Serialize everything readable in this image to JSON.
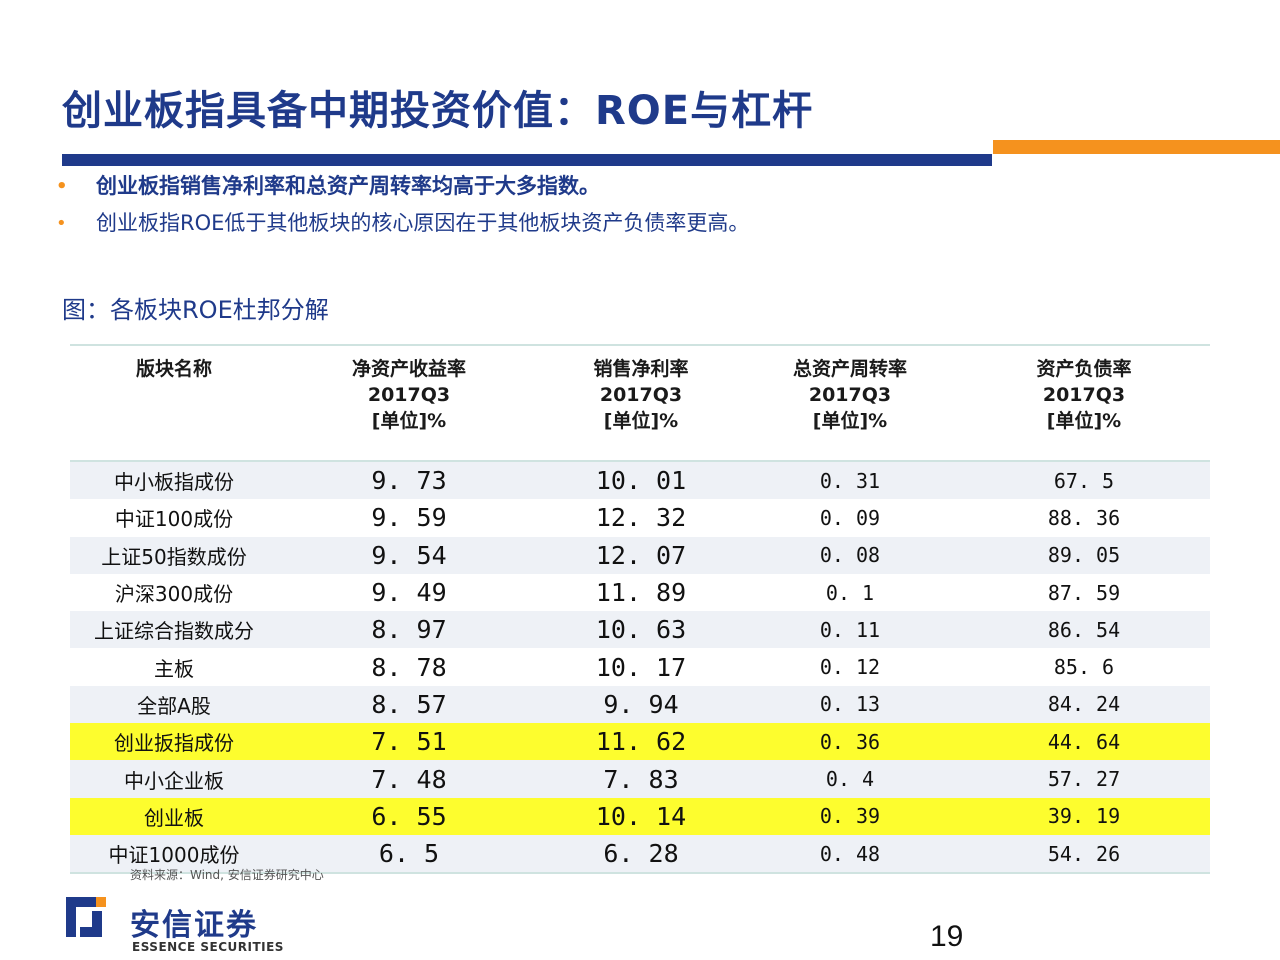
{
  "slide": {
    "title": "创业板指具备中期投资价值：ROE与杠杆",
    "bullets": [
      "创业板指销售净利率和总资产周转率均高于大多指数。",
      "创业板指ROE低于其他板块的核心原因在于其他板块资产负债率更高。"
    ],
    "bullet_glyph": "•",
    "figure_title": "图：各板块ROE杜邦分解",
    "page_number": "19"
  },
  "table": {
    "headers": [
      [
        "版块名称"
      ],
      [
        "净资产收益率",
        "2017Q3",
        "[单位]%"
      ],
      [
        "销售净利率",
        "2017Q3",
        "[单位]%"
      ],
      [
        "总资产周转率",
        "2017Q3",
        "[单位]%"
      ],
      [
        "资产负债率",
        "2017Q3",
        "[单位]%"
      ]
    ],
    "rows": [
      {
        "name": "中小板指成份",
        "roe": "9. 73",
        "margin": "10. 01",
        "turnover": "0. 31",
        "debt": "67. 5"
      },
      {
        "name": "中证100成份",
        "roe": "9. 59",
        "margin": "12. 32",
        "turnover": "0. 09",
        "debt": "88. 36"
      },
      {
        "name": "上证50指数成份",
        "roe": "9. 54",
        "margin": "12. 07",
        "turnover": "0. 08",
        "debt": "89. 05"
      },
      {
        "name": "沪深300成份",
        "roe": "9. 49",
        "margin": "11. 89",
        "turnover": "0. 1",
        "debt": "87. 59"
      },
      {
        "name": "上证综合指数成分",
        "roe": "8. 97",
        "margin": "10. 63",
        "turnover": "0. 11",
        "debt": "86. 54"
      },
      {
        "name": "主板",
        "roe": "8. 78",
        "margin": "10. 17",
        "turnover": "0. 12",
        "debt": "85. 6"
      },
      {
        "name": "全部A股",
        "roe": "8. 57",
        "margin": "9. 94",
        "turnover": "0. 13",
        "debt": "84. 24"
      },
      {
        "name": "创业扳指成份",
        "roe": "7. 51",
        "margin": "11. 62",
        "turnover": "0. 36",
        "debt": "44. 64"
      },
      {
        "name": "中小企业板",
        "roe": "7. 48",
        "margin": "7. 83",
        "turnover": "0. 4",
        "debt": "57. 27"
      },
      {
        "name": "创业板",
        "roe": "6. 55",
        "margin": "10. 14",
        "turnover": "0. 39",
        "debt": "39. 19"
      },
      {
        "name": "中证1000成份",
        "roe": "6. 5",
        "margin": "6. 28",
        "turnover": "0. 48",
        "debt": "54. 26"
      }
    ],
    "highlighted_rows": [
      "创业扳指成份",
      "创业板"
    ]
  },
  "source_note": "资料来源：Wind, 安信证券研究中心",
  "logo": {
    "cn": "安信证券",
    "en": "ESSENCE SECURITIES"
  },
  "colors": {
    "title_blue": "#1f3a8a",
    "accent_orange": "#f5921e",
    "highlight_yellow": "#fdfd2e",
    "alt_row": "#eef1f6",
    "table_rule": "#cfe3e0"
  }
}
